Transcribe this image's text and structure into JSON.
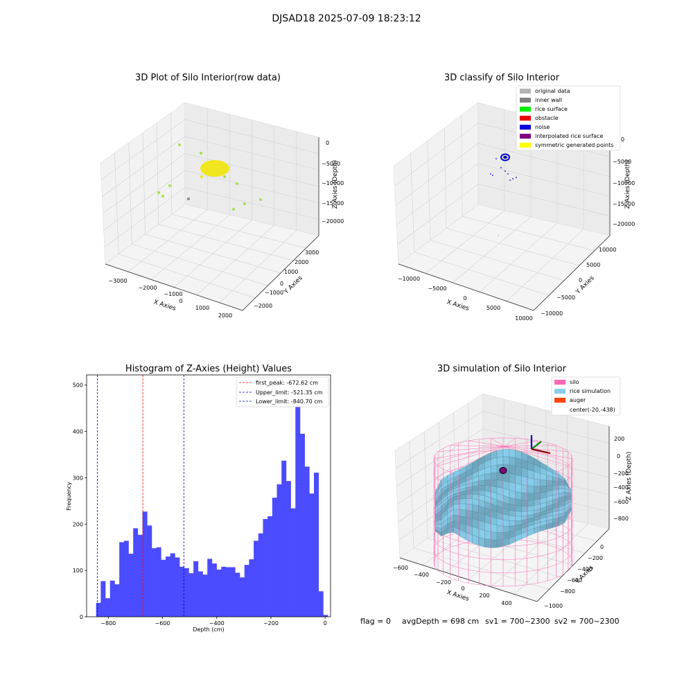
{
  "figure": {
    "suptitle": "DJSAD18 2025-07-09 18:23:12",
    "footer": {
      "flag": "flag = 0",
      "avg_depth": "avgDepth = 698 cm",
      "sv1": "sv1 = 700~2300",
      "sv2": "sv2 = 700~2300"
    }
  },
  "colors": {
    "histogram_bar": "#4b4bff",
    "first_peak_line": "#ff0000",
    "limit_line": "#0000bb",
    "legend_original": "#b4b4b4",
    "legend_inner_wall": "#808080",
    "legend_rice_surface": "#00ee00",
    "legend_obstacle": "#ee0000",
    "legend_noise": "#0000dd",
    "legend_interpolated": "#800080",
    "legend_symmetric": "#ffff00",
    "silo": "#ff69b4",
    "rice_simulation": "#87ceeb",
    "auger": "#ff4500",
    "raw_points": "#a4e04c",
    "raw_cluster": "#f0e61e"
  },
  "chart_data": [
    {
      "type": "scatter",
      "projection": "3d",
      "title": "3D Plot of Silo Interior(row data)",
      "xlabel": "X Axies",
      "ylabel": "Y Axies",
      "zlabel": "Z Axies (Depth)",
      "x_ticks": [
        "−3000",
        "−2000",
        "−1000",
        "0",
        "1000",
        "2000"
      ],
      "y_ticks": [
        "−2000",
        "−1000",
        "0",
        "1000",
        "2000",
        "3000"
      ],
      "z_ticks": [
        "0",
        "−5000",
        "−10000",
        "−15000",
        "−20000"
      ],
      "grid": true,
      "scattered_points": [
        {
          "x": -1900,
          "y": 2700,
          "z": -700,
          "color": "green"
        },
        {
          "x": -800,
          "y": 2500,
          "z": -1300,
          "color": "green"
        },
        {
          "x": -2200,
          "y": 1200,
          "z": -5500,
          "color": "green"
        },
        {
          "x": -2700,
          "y": 800,
          "z": -6500,
          "color": "green"
        },
        {
          "x": -2600,
          "y": 500,
          "z": -7500,
          "color": "green"
        },
        {
          "x": 400,
          "y": 2600,
          "z": -3800,
          "color": "green"
        },
        {
          "x": 1100,
          "y": 2300,
          "z": -5500,
          "color": "green"
        },
        {
          "x": 1500,
          "y": 1200,
          "z": -8500,
          "color": "green"
        },
        {
          "x": 1700,
          "y": 300,
          "z": -11000,
          "color": "green"
        },
        {
          "x": 1200,
          "y": -400,
          "z": -12000,
          "color": "green"
        },
        {
          "x": -200,
          "y": 3200,
          "z": -3800,
          "color": "yellow"
        },
        {
          "x": -1000,
          "y": -800,
          "z": -12500,
          "color": "gray"
        }
      ],
      "dense_cluster": {
        "x_center": 0,
        "y_center": 2800,
        "z_center": -2800,
        "color": "yellow"
      }
    },
    {
      "type": "scatter",
      "projection": "3d",
      "title": "3D classify of Silo Interior",
      "xlabel": "X Axies",
      "ylabel": "Y Axies",
      "zlabel": "Z Axies (Depth)",
      "x_ticks": [
        "−10000",
        "−5000",
        "0",
        "5000",
        "10000"
      ],
      "y_ticks": [
        "−10000",
        "−5000",
        "0",
        "5000",
        "10000"
      ],
      "z_ticks": [
        "0",
        "−5000",
        "−10000",
        "−15000",
        "−20000"
      ],
      "grid": true,
      "legend": [
        "original data",
        "inner wall",
        "rice surface",
        "obstacle",
        "noise",
        "interpolated rice surface",
        "symmetric generated points"
      ],
      "legend_position": "top-right"
    },
    {
      "type": "bar",
      "title": "Histogram of Z-Axies (Height) Values",
      "xlabel": "Depth (cm)",
      "ylabel": "Frequency",
      "xlim": [
        -880,
        20
      ],
      "ylim": [
        0,
        522
      ],
      "x_ticks": [
        -800,
        -600,
        -400,
        -200,
        0
      ],
      "x_tick_labels": [
        "−800",
        "−600",
        "−400",
        "−200",
        "0"
      ],
      "y_ticks": [
        0,
        100,
        200,
        300,
        400,
        500
      ],
      "bins_start": -845,
      "bin_width": 17.1,
      "values": [
        30,
        77,
        40,
        78,
        70,
        161,
        164,
        136,
        191,
        177,
        227,
        197,
        148,
        150,
        123,
        130,
        137,
        128,
        108,
        105,
        94,
        120,
        98,
        91,
        125,
        115,
        102,
        108,
        107,
        107,
        95,
        85,
        112,
        124,
        164,
        180,
        211,
        217,
        257,
        286,
        337,
        293,
        234,
        502,
        395,
        324,
        266,
        311,
        55,
        4
      ],
      "vlines": [
        {
          "x": -672.62,
          "label": "first_peak: -672.62 cm",
          "style": "dashed",
          "color": "red"
        },
        {
          "x": -521.35,
          "label": "Upper_limit: -521.35 cm",
          "style": "dashed",
          "color": "blue"
        },
        {
          "x": -840.7,
          "label": "Lower_limit: -840.70 cm",
          "style": "dashed",
          "color": "blue"
        }
      ],
      "legend_position": "top-right"
    },
    {
      "type": "surface",
      "projection": "3d",
      "title": "3D simulation of Silo Interior",
      "xlabel": "X Axies",
      "ylabel": "Y Axies",
      "zlabel": "Z Axies (Depth)",
      "x_ticks": [
        "−600",
        "−400",
        "−200",
        "0",
        "200",
        "400"
      ],
      "y_ticks": [
        "−1000",
        "−800",
        "−600",
        "−400",
        "−200",
        "0"
      ],
      "z_ticks": [
        "200",
        "0",
        "−200",
        "−400",
        "−600",
        "−800"
      ],
      "grid": true,
      "legend": [
        "silo",
        "rice simulation",
        "auger",
        "center(-20,-438)"
      ],
      "legend_position": "top-right"
    }
  ]
}
